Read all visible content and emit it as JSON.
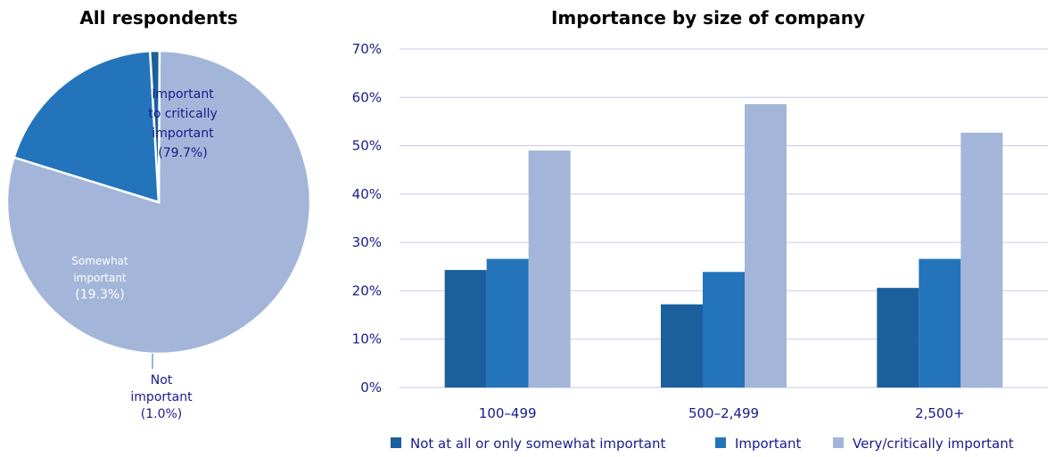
{
  "chart_data": [
    {
      "type": "pie",
      "title": "All respondents",
      "slices": [
        {
          "label_lines": [
            "Important",
            "to critically",
            "important"
          ],
          "value_label": "(79.7%)",
          "value": 79.7,
          "color": "#a3b6d9"
        },
        {
          "label_lines": [
            "Somewhat",
            "important"
          ],
          "value_label": "(19.3%)",
          "value": 19.3,
          "color": "#2474bb"
        },
        {
          "label_lines": [
            "Not",
            "important"
          ],
          "value_label": "(1.0%)",
          "value": 1.0,
          "color": "#1b5f9c"
        }
      ]
    },
    {
      "type": "bar",
      "title": "Importance by size of company",
      "categories": [
        "100–499",
        "500–2,499",
        "2,500+"
      ],
      "series": [
        {
          "name": "Not at all or only somewhat important",
          "values": [
            24.3,
            17.2,
            20.6
          ],
          "color": "#1b5f9c"
        },
        {
          "name": "Important",
          "values": [
            26.6,
            23.9,
            26.6
          ],
          "color": "#2474bb"
        },
        {
          "name": "Very/critically important",
          "values": [
            49.0,
            58.6,
            52.7
          ],
          "color": "#a3b6d9"
        }
      ],
      "ylim": [
        0,
        70
      ],
      "yticks": [
        "0%",
        "10%",
        "20%",
        "30%",
        "40%",
        "50%",
        "60%",
        "70%"
      ],
      "grid": true,
      "legend_position": "bottom"
    }
  ]
}
